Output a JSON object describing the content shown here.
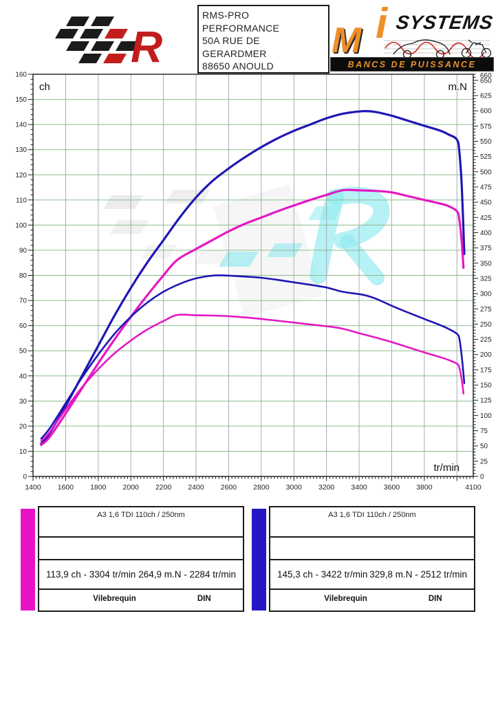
{
  "header": {
    "left_logo": {
      "letter": "R",
      "red": "#c21d1d",
      "black": "#1b1b1b"
    },
    "address_box": {
      "lines": [
        "RMS-PRO",
        "PERFORMANCE",
        "50A RUE DE",
        "GERARDMER",
        "88650 ANOULD"
      ]
    },
    "right_logo": {
      "m": "M",
      "i": "i",
      "systems": "SYSTEMS",
      "tagline": "BANCS DE PUISSANCE",
      "accent_color": "#ef8f2a"
    }
  },
  "chart_data": {
    "type": "line",
    "x_axis": {
      "label": "tr/min",
      "min": 1400,
      "max": 4100,
      "major_step": 200,
      "minor_step": 20,
      "last_label": 4100
    },
    "left_axis": {
      "label": "ch",
      "min": 0,
      "max": 160,
      "major_step": 10,
      "minor_step": 2
    },
    "right_axis": {
      "label": "m.N",
      "min": 0,
      "max": 660,
      "major_step": 25,
      "minor_step": 5,
      "top_label": 660
    },
    "grid": {
      "h_color": "#8cbc8c",
      "v_color": "#a5abb5",
      "frame_color": "#1c1c1c"
    },
    "series": [
      {
        "name": "power-tuned",
        "axis": "left",
        "color": "#1f16b4",
        "width": 3.2,
        "peak": {
          "value": 145.3,
          "unit": "ch",
          "rpm": 3422
        },
        "points": [
          [
            1450,
            13
          ],
          [
            1500,
            17
          ],
          [
            1600,
            28
          ],
          [
            1700,
            40
          ],
          [
            1800,
            52
          ],
          [
            1900,
            64
          ],
          [
            2000,
            75
          ],
          [
            2100,
            85
          ],
          [
            2200,
            94
          ],
          [
            2300,
            103
          ],
          [
            2400,
            111
          ],
          [
            2500,
            117.5
          ],
          [
            2600,
            122.5
          ],
          [
            2700,
            127
          ],
          [
            2800,
            131
          ],
          [
            2900,
            134.5
          ],
          [
            3000,
            137.5
          ],
          [
            3100,
            140
          ],
          [
            3200,
            142.5
          ],
          [
            3300,
            144.3
          ],
          [
            3422,
            145.3
          ],
          [
            3500,
            145
          ],
          [
            3600,
            143.5
          ],
          [
            3700,
            141.5
          ],
          [
            3800,
            139.5
          ],
          [
            3900,
            137.5
          ],
          [
            3950,
            136
          ],
          [
            4000,
            134
          ],
          [
            4015,
            129
          ],
          [
            4030,
            115
          ],
          [
            4045,
            88.5
          ]
        ]
      },
      {
        "name": "power-stock",
        "axis": "left",
        "color": "#e517c3",
        "width": 3.2,
        "peak": {
          "value": 113.9,
          "unit": "ch",
          "rpm": 3304
        },
        "points": [
          [
            1450,
            12.5
          ],
          [
            1500,
            15.5
          ],
          [
            1600,
            25
          ],
          [
            1700,
            35
          ],
          [
            1800,
            45
          ],
          [
            1900,
            54.5
          ],
          [
            2000,
            63.5
          ],
          [
            2100,
            72
          ],
          [
            2200,
            80
          ],
          [
            2284,
            86.1
          ],
          [
            2400,
            90.5
          ],
          [
            2500,
            94
          ],
          [
            2600,
            97.5
          ],
          [
            2700,
            100.5
          ],
          [
            2800,
            103
          ],
          [
            2900,
            105.5
          ],
          [
            3000,
            107.8
          ],
          [
            3100,
            110
          ],
          [
            3200,
            112
          ],
          [
            3304,
            113.9
          ],
          [
            3400,
            113.8
          ],
          [
            3500,
            113.6
          ],
          [
            3600,
            113
          ],
          [
            3700,
            111.5
          ],
          [
            3800,
            110
          ],
          [
            3900,
            108.5
          ],
          [
            3950,
            107.5
          ],
          [
            4000,
            105.5
          ],
          [
            4015,
            102
          ],
          [
            4030,
            93
          ],
          [
            4040,
            83
          ]
        ]
      },
      {
        "name": "torque-tuned",
        "axis": "right",
        "color": "#1f16b4",
        "width": 2.6,
        "peak": {
          "value": 329.8,
          "unit": "m.N",
          "rpm": 2512
        },
        "points": [
          [
            1450,
            62
          ],
          [
            1500,
            78
          ],
          [
            1600,
            120
          ],
          [
            1700,
            162
          ],
          [
            1800,
            200
          ],
          [
            1900,
            234
          ],
          [
            2000,
            262
          ],
          [
            2100,
            285
          ],
          [
            2200,
            303
          ],
          [
            2300,
            316
          ],
          [
            2400,
            325
          ],
          [
            2512,
            329.8
          ],
          [
            2600,
            329.5
          ],
          [
            2700,
            328
          ],
          [
            2800,
            326
          ],
          [
            2900,
            322.5
          ],
          [
            3000,
            318.5
          ],
          [
            3100,
            314.5
          ],
          [
            3200,
            310
          ],
          [
            3300,
            303
          ],
          [
            3422,
            298.2
          ],
          [
            3500,
            292
          ],
          [
            3600,
            280
          ],
          [
            3700,
            269
          ],
          [
            3800,
            258.5
          ],
          [
            3900,
            248
          ],
          [
            3950,
            242
          ],
          [
            4000,
            234
          ],
          [
            4015,
            226
          ],
          [
            4030,
            196
          ],
          [
            4045,
            153
          ]
        ]
      },
      {
        "name": "torque-stock",
        "axis": "right",
        "color": "#e517c3",
        "width": 2.6,
        "peak": {
          "value": 264.9,
          "unit": "m.N",
          "rpm": 2284
        },
        "points": [
          [
            1450,
            58
          ],
          [
            1500,
            72
          ],
          [
            1600,
            110
          ],
          [
            1700,
            146
          ],
          [
            1800,
            176
          ],
          [
            1900,
            202
          ],
          [
            2000,
            223
          ],
          [
            2100,
            241
          ],
          [
            2200,
            255
          ],
          [
            2284,
            264.9
          ],
          [
            2400,
            264.5
          ],
          [
            2500,
            264
          ],
          [
            2600,
            263
          ],
          [
            2700,
            261
          ],
          [
            2800,
            258.5
          ],
          [
            2900,
            255.5
          ],
          [
            3000,
            252.5
          ],
          [
            3100,
            249.5
          ],
          [
            3200,
            246.5
          ],
          [
            3300,
            242.5
          ],
          [
            3400,
            235
          ],
          [
            3500,
            228
          ],
          [
            3600,
            220.5
          ],
          [
            3700,
            212
          ],
          [
            3800,
            203.5
          ],
          [
            3900,
            195.5
          ],
          [
            3950,
            191
          ],
          [
            4000,
            185
          ],
          [
            4015,
            178
          ],
          [
            4030,
            158
          ],
          [
            4040,
            136
          ]
        ]
      }
    ]
  },
  "legends": [
    {
      "color": "#e812c9",
      "title": "A3 1,6 TDI 110ch / 250nm",
      "power": "113,9 ch - 3304 tr/min",
      "torque": "264,9 m.N - 2284 tr/min",
      "footer_left": "Vilebrequin",
      "footer_right": "DIN"
    },
    {
      "color": "#2418c4",
      "title": "A3 1,6 TDI 110ch / 250nm",
      "power": "145,3 ch - 3422 tr/min",
      "torque": "329,8 m.N - 2512 tr/min",
      "footer_left": "Vilebrequin",
      "footer_right": "DIN"
    }
  ]
}
